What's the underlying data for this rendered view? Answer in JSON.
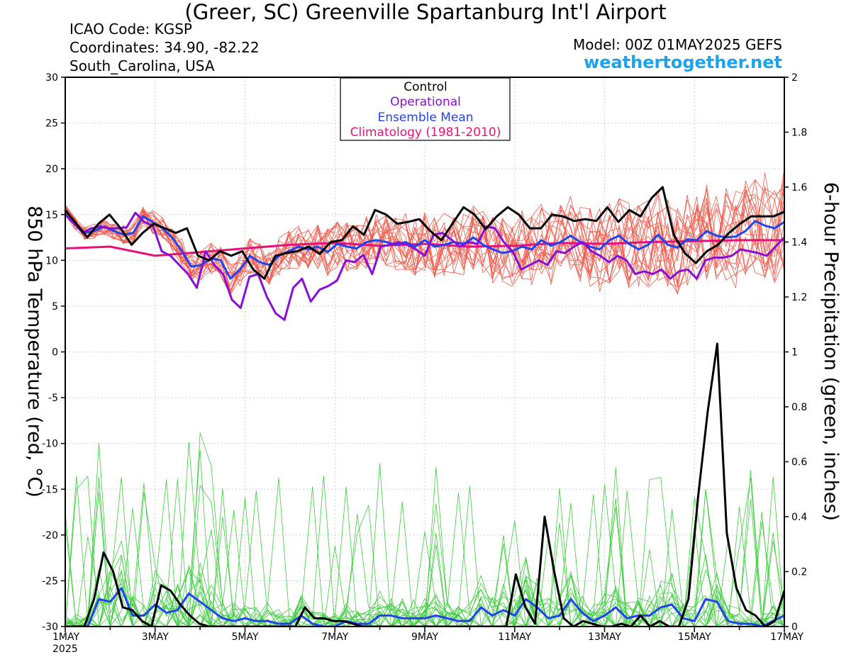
{
  "title": "(Greer, SC) Greenville Spartanburg Int'l Airport",
  "station": {
    "icao": "ICAO Code: KGSP",
    "coords": "Coordinates: 34.90, -82.22",
    "region": "South_Carolina, USA"
  },
  "model": "Model: 00Z 01MAY2025 GEFS",
  "site": "weathertogether.net",
  "legend": {
    "control": "Control",
    "operational": "Operational",
    "mean": "Ensemble Mean",
    "climo": "Climatology (1981-2010)"
  },
  "colors": {
    "control": "#000000",
    "operational": "#8a0fd6",
    "mean": "#2244ee",
    "climo": "#e8107a",
    "members_temp": "#f05a4a",
    "members_precip": "#3ccc3c"
  },
  "chart_data": {
    "type": "line",
    "xlabel": "",
    "ylabel": "850 hPa Temperature (red, °C)",
    "y2label": "6-hour Precipitation (green, inches)",
    "x_tick_labels": [
      "1MAY",
      "3MAY",
      "5MAY",
      "7MAY",
      "9MAY",
      "11MAY",
      "13MAY",
      "15MAY",
      "17MAY"
    ],
    "x_year_label": "2025",
    "xlim_days": [
      0,
      16
    ],
    "ylim": [
      -30,
      30
    ],
    "y_ticks": [
      30,
      25,
      20,
      15,
      10,
      5,
      0,
      -5,
      -10,
      -15,
      -20,
      -25,
      -30
    ],
    "y2lim": [
      0,
      2
    ],
    "y2_ticks": [
      "2",
      "1.8",
      "1.6",
      "1.4",
      "1.2",
      "1",
      "0.8",
      "0.6",
      "0.4",
      "0.2",
      "0"
    ],
    "temperature": {
      "control": [
        15.5,
        14,
        12.5,
        14,
        15,
        13.5,
        11.7,
        13,
        14,
        13.5,
        13,
        13.5,
        10.5,
        10,
        11,
        10.5,
        11,
        9,
        8,
        10.5,
        10.8,
        11,
        11.5,
        10.7,
        12,
        12.2,
        13.7,
        12.8,
        15.5,
        15,
        14,
        14.2,
        14.5,
        13.2,
        12.2,
        14,
        15.8,
        15,
        13.4,
        14.8,
        15.8,
        15,
        13.5,
        13.5,
        15,
        14.8,
        14.3,
        14.5,
        14.3,
        15.8,
        14.2,
        15.5,
        14.8,
        16.8,
        18,
        12.8,
        10.8,
        9.7,
        11,
        11.7,
        13,
        14,
        14.8,
        14.8,
        14.8,
        15.3
      ],
      "operational": [
        15,
        14,
        13,
        13.5,
        13.7,
        13.5,
        13.5,
        13.6,
        15.2,
        14.2,
        13.8,
        11,
        10.5,
        9.5,
        8.5,
        7,
        11,
        9.5,
        8.5,
        5.7,
        4.8,
        8.2,
        8.5,
        6,
        4.2,
        3.5,
        7,
        8,
        5.5,
        6.8,
        7.2,
        7.8,
        10,
        9.8,
        10.6,
        8.5,
        11.5,
        11.7,
        12,
        11.7,
        11.2,
        10.5,
        12.8,
        13,
        12.3,
        11.5,
        12,
        11.8,
        13.7,
        13.5,
        12,
        11,
        9,
        9.5,
        10,
        9.5,
        11,
        10.8,
        11.5,
        12,
        11,
        10.5,
        9.8,
        10.5,
        10,
        8.5,
        8.8,
        8.5,
        9,
        8,
        8.8,
        9,
        8,
        10,
        10.3,
        10.3,
        10.5,
        11.2,
        11,
        10.8,
        10.5,
        11.5,
        12.5
      ],
      "mean": [
        15.5,
        14,
        13,
        13.2,
        13.7,
        13.2,
        12.8,
        13,
        14.8,
        14.2,
        13.5,
        12.5,
        11,
        9.3,
        9.5,
        10.2,
        10,
        8,
        9,
        10.5,
        9.8,
        9.5,
        10.5,
        11,
        11.5,
        11.2,
        11.5,
        10.9,
        11.8,
        11.5,
        11.3,
        12,
        12.2,
        12,
        11.7,
        12,
        11.5,
        12.2,
        11.5,
        11.7,
        12,
        11.8,
        12.5,
        11.7,
        11.2,
        10.8,
        11,
        11.5,
        11.2,
        12.2,
        11.6,
        12,
        12.7,
        12,
        11.5,
        11.2,
        12.2,
        12.7,
        11.8,
        11.2,
        11.7,
        12.8,
        11.7,
        11.4,
        12.3,
        12.2,
        13.2,
        12.7,
        12.5,
        12.6,
        13.2,
        14.3,
        13.8,
        13.5,
        14.2
      ],
      "climatology": [
        11.3,
        11.5,
        10.5,
        10.9,
        11.3,
        11.7,
        11.9,
        11.6,
        11.8,
        11.5,
        11.6,
        11.9,
        11.8,
        12,
        12.1,
        12.2,
        12.2
      ]
    },
    "precipitation": {
      "control": [
        0,
        0,
        0,
        0.1,
        0.27,
        0.2,
        0.07,
        0.06,
        0.02,
        0,
        0.15,
        0.13,
        0.08,
        0.04,
        0.01,
        0,
        0,
        0,
        0,
        0,
        0,
        0,
        0,
        0,
        0,
        0.07,
        0.03,
        0.03,
        0.02,
        0.02,
        0.01,
        0,
        0,
        0,
        0,
        0,
        0,
        0,
        0,
        0,
        0,
        0,
        0,
        0,
        0,
        0,
        0,
        0.19,
        0.07,
        0.01,
        0.4,
        0.2,
        0.03,
        0,
        0.02,
        0.01,
        0,
        0,
        0.01,
        0,
        0.04,
        0,
        0.02,
        0,
        0,
        0.1,
        0.47,
        0.78,
        1.03,
        0.34,
        0.14,
        0.06,
        0.04,
        0,
        0.02,
        0.13
      ],
      "mean": [
        0,
        0,
        0,
        0.1,
        0.09,
        0.14,
        0.04,
        0.04,
        0.08,
        0.05,
        0.06,
        0.12,
        0.09,
        0.06,
        0.03,
        0.02,
        0.03,
        0.02,
        0.02,
        0.01,
        0.01,
        0.04,
        0.01,
        0,
        0,
        0.02,
        0.01,
        0.01,
        0.04,
        0.04,
        0.03,
        0.03,
        0.03,
        0.04,
        0.03,
        0.02,
        0.02,
        0.07,
        0.04,
        0.06,
        0.04,
        0.1,
        0.07,
        0.03,
        0.04,
        0.1,
        0.05,
        0.02,
        0.04,
        0.07,
        0.03,
        0.04,
        0.04,
        0.07,
        0.08,
        0.03,
        0.02,
        0.1,
        0.09,
        0.02,
        0.01,
        0.01,
        0,
        0.02,
        0.04
      ]
    }
  }
}
